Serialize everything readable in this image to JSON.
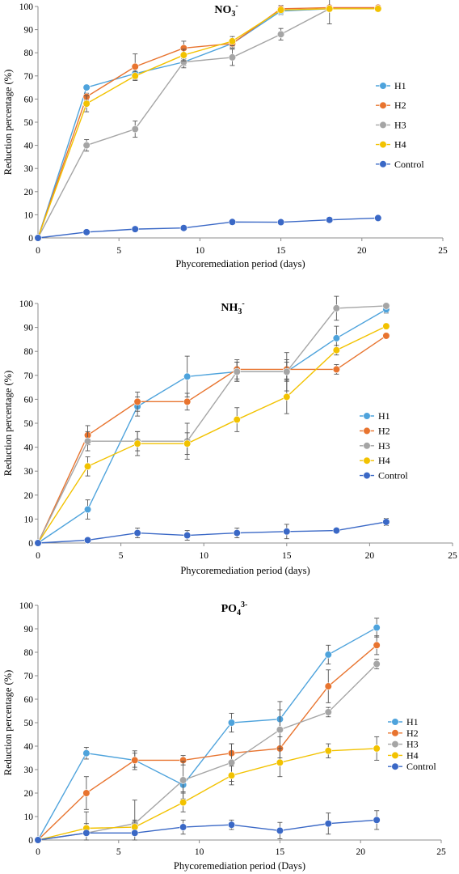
{
  "figure": {
    "chart_data": [
      {
        "type": "line",
        "title_main": "NO",
        "title_sub": "3",
        "title_sup": "-",
        "xlabel": "Phycoremediation period (days)",
        "ylabel": "Reduction percentage (%)",
        "xlim": [
          0,
          25
        ],
        "ylim": [
          0,
          100
        ],
        "xticks": [
          "0",
          "5",
          "10",
          "15",
          "20",
          "25"
        ],
        "yticks": [
          "0",
          "10",
          "20",
          "30",
          "40",
          "50",
          "60",
          "70",
          "80",
          "90",
          "100"
        ],
        "x": [
          0,
          3,
          6,
          9,
          12,
          15,
          18,
          21
        ],
        "legend_position": "right",
        "series": [
          {
            "name": "H1",
            "color": "#4ea3dc",
            "values": [
              0,
              65,
              71,
              76,
              84,
              98,
              99,
              99
            ],
            "errors": [
              0,
              1,
              2,
              1.5,
              1.5,
              1.5,
              1,
              1
            ]
          },
          {
            "name": "H2",
            "color": "#e8742f",
            "values": [
              0,
              61,
              74,
              82,
              84,
              99,
              99.5,
              99.5
            ],
            "errors": [
              0,
              1.5,
              5.5,
              3,
              2,
              1.5,
              1,
              1
            ]
          },
          {
            "name": "H3",
            "color": "#a5a5a5",
            "values": [
              0,
              40,
              47,
              76,
              78,
              88,
              99,
              99
            ],
            "errors": [
              0,
              2.5,
              3.5,
              2.5,
              3.5,
              2.5,
              6.5,
              1
            ]
          },
          {
            "name": "H4",
            "color": "#f2c200",
            "values": [
              0,
              58,
              70,
              79,
              85,
              98.5,
              99,
              99
            ],
            "errors": [
              0,
              3.5,
              2,
              2.5,
              2,
              1,
              1,
              1
            ]
          },
          {
            "name": "Control",
            "color": "#3a68c6",
            "values": [
              0,
              2.5,
              3.8,
              4.3,
              6.9,
              6.8,
              7.8,
              8.6
            ],
            "errors": [
              0,
              0.5,
              0.5,
              0.5,
              0.5,
              0.5,
              0.5,
              0.5
            ]
          }
        ]
      },
      {
        "type": "line",
        "title_main": "NH",
        "title_sub": "3",
        "title_sup": "-",
        "xlabel": "Phycoremediation period (days)",
        "ylabel": "Reduction percentage (%)",
        "xlim": [
          0,
          25
        ],
        "ylim": [
          0,
          100
        ],
        "xticks": [
          "0",
          "5",
          "10",
          "15",
          "20",
          "25"
        ],
        "yticks": [
          "0",
          "10",
          "20",
          "30",
          "40",
          "50",
          "60",
          "70",
          "80",
          "90",
          "100"
        ],
        "x": [
          0,
          3,
          6,
          9,
          12,
          15,
          18,
          21
        ],
        "legend_position": "right",
        "series": [
          {
            "name": "H1",
            "color": "#4ea3dc",
            "values": [
              0,
              14,
              57,
              69.5,
              71.5,
              71.5,
              85.5,
              97.5
            ],
            "errors": [
              0,
              4,
              4,
              8.5,
              4,
              4,
              5,
              1.5
            ]
          },
          {
            "name": "H2",
            "color": "#e8742f",
            "values": [
              0,
              45,
              59,
              59,
              72.5,
              72.5,
              72.5,
              86.5
            ],
            "errors": [
              0,
              4,
              4,
              3.5,
              4,
              4,
              2,
              1
            ]
          },
          {
            "name": "H3",
            "color": "#a5a5a5",
            "values": [
              0,
              42.5,
              42.5,
              42.5,
              71.5,
              71.5,
              98,
              99
            ],
            "errors": [
              0,
              4,
              4,
              7.5,
              4,
              8,
              5,
              1
            ]
          },
          {
            "name": "H4",
            "color": "#f2c200",
            "values": [
              0,
              32,
              41.5,
              41.5,
              51.5,
              61,
              80.5,
              90.5
            ],
            "errors": [
              0,
              4,
              5,
              4.5,
              5,
              7,
              2,
              1
            ]
          },
          {
            "name": "Control",
            "color": "#3a68c6",
            "values": [
              0,
              1.2,
              4.2,
              3.2,
              4.2,
              4.8,
              5.2,
              8.8
            ],
            "errors": [
              0,
              0.5,
              2,
              2,
              2,
              3,
              0.5,
              1.5
            ]
          }
        ]
      },
      {
        "type": "line",
        "title_main": "PO",
        "title_sub": "4",
        "title_sup": "3-",
        "xlabel": "Phycoremediation period (Days)",
        "ylabel": "Reduction percentage (%)",
        "xlim": [
          0,
          25
        ],
        "ylim": [
          0,
          100
        ],
        "xticks": [
          "0",
          "5",
          "10",
          "15",
          "20",
          "25"
        ],
        "yticks": [
          "0",
          "10",
          "20",
          "30",
          "40",
          "50",
          "60",
          "70",
          "80",
          "90",
          "100"
        ],
        "x": [
          0,
          3,
          6,
          9,
          12,
          15,
          18,
          21
        ],
        "legend_position": "right",
        "series": [
          {
            "name": "H1",
            "color": "#4ea3dc",
            "values": [
              0,
              37,
              34,
              23.5,
              50,
              51.5,
              79,
              90.5
            ],
            "errors": [
              0,
              2.5,
              4,
              3,
              4,
              4,
              4,
              4
            ]
          },
          {
            "name": "H2",
            "color": "#e8742f",
            "values": [
              0,
              20,
              34,
              34,
              37,
              39,
              65.5,
              83
            ],
            "errors": [
              0,
              7,
              3,
              2,
              4,
              5,
              7,
              4
            ]
          },
          {
            "name": "H3",
            "color": "#a5a5a5",
            "values": [
              0,
              3,
              7,
              25.5,
              33,
              47,
              54.5,
              75
            ],
            "errors": [
              0,
              9,
              10,
              8,
              8,
              12,
              2,
              2
            ]
          },
          {
            "name": "H4",
            "color": "#f2c200",
            "values": [
              0,
              5,
              5.5,
              16,
              27.5,
              33,
              38,
              39
            ],
            "errors": [
              0,
              2,
              3,
              4,
              4,
              6,
              3,
              5
            ]
          },
          {
            "name": "Control",
            "color": "#3a68c6",
            "values": [
              0,
              3,
              3,
              5.5,
              6.5,
              4,
              7,
              8.5
            ],
            "errors": [
              0,
              1,
              1,
              3,
              2,
              3.5,
              4.5,
              4
            ]
          }
        ]
      }
    ]
  }
}
